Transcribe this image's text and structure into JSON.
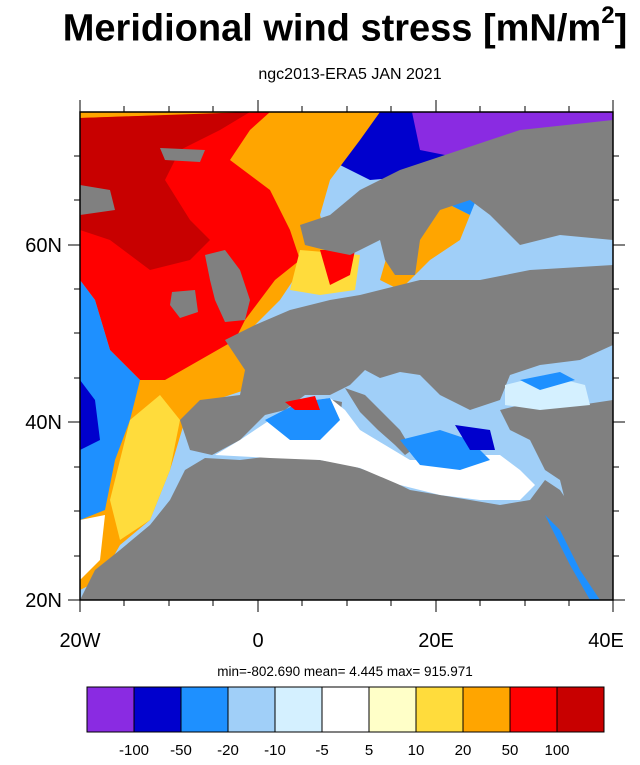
{
  "title": "Meridional wind stress [mN/m",
  "title_sup": "2",
  "title_close": "]",
  "subtitle": "ngc2013-ERA5  JAN 2021",
  "stats": "min=-802.690  mean=   4.445  max= 915.971",
  "axes": {
    "lat_labels": [
      "60N",
      "40N",
      "20N"
    ],
    "lon_labels": [
      "20W",
      "0",
      "20E",
      "40E"
    ]
  },
  "colorbar": {
    "colors": [
      "#8a2be2",
      "#0000cd",
      "#1e90ff",
      "#a0cff8",
      "#d4f0ff",
      "#ffffff",
      "#ffffc8",
      "#ffdc3c",
      "#ffa500",
      "#ff0000",
      "#c80000"
    ],
    "labels": [
      "-100",
      "-50",
      "-20",
      "-10",
      "-5",
      "5",
      "10",
      "20",
      "50",
      "100"
    ]
  },
  "land_color": "#808080"
}
